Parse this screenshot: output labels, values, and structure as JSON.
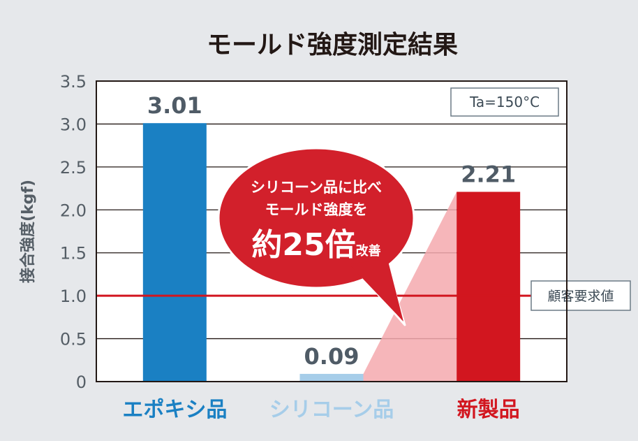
{
  "chart_data": {
    "type": "bar",
    "title": "モールド強度測定結果",
    "ylabel": "接合強度(kgf)",
    "ylim": [
      0,
      3.5
    ],
    "yticks": [
      0,
      0.5,
      1.0,
      1.5,
      2.0,
      2.5,
      3.0,
      3.5
    ],
    "ytick_labels": [
      "0",
      "0.5",
      "1.0",
      "1.5",
      "2.0",
      "2.5",
      "3.0",
      "3.5"
    ],
    "grid": true,
    "categories": [
      "エポキシ品",
      "シリコーン品",
      "新製品"
    ],
    "values": [
      3.01,
      0.09,
      2.21
    ],
    "value_labels": [
      "3.01",
      "0.09",
      "2.21"
    ],
    "colors": [
      "#1a80c3",
      "#a6cde9",
      "#d2161f"
    ],
    "category_label_colors": [
      "#1a80c3",
      "#a6cde9",
      "#d2161f"
    ],
    "condition": "Ta=150°C",
    "reference_line": {
      "value": 1.0,
      "label": "顧客要求値",
      "color": "#d2161f"
    },
    "callout": {
      "line1": "シリコーン品に比べ",
      "line2": "モールド強度を",
      "big": "約25倍",
      "small": "改善",
      "color": "#d2202b"
    }
  }
}
